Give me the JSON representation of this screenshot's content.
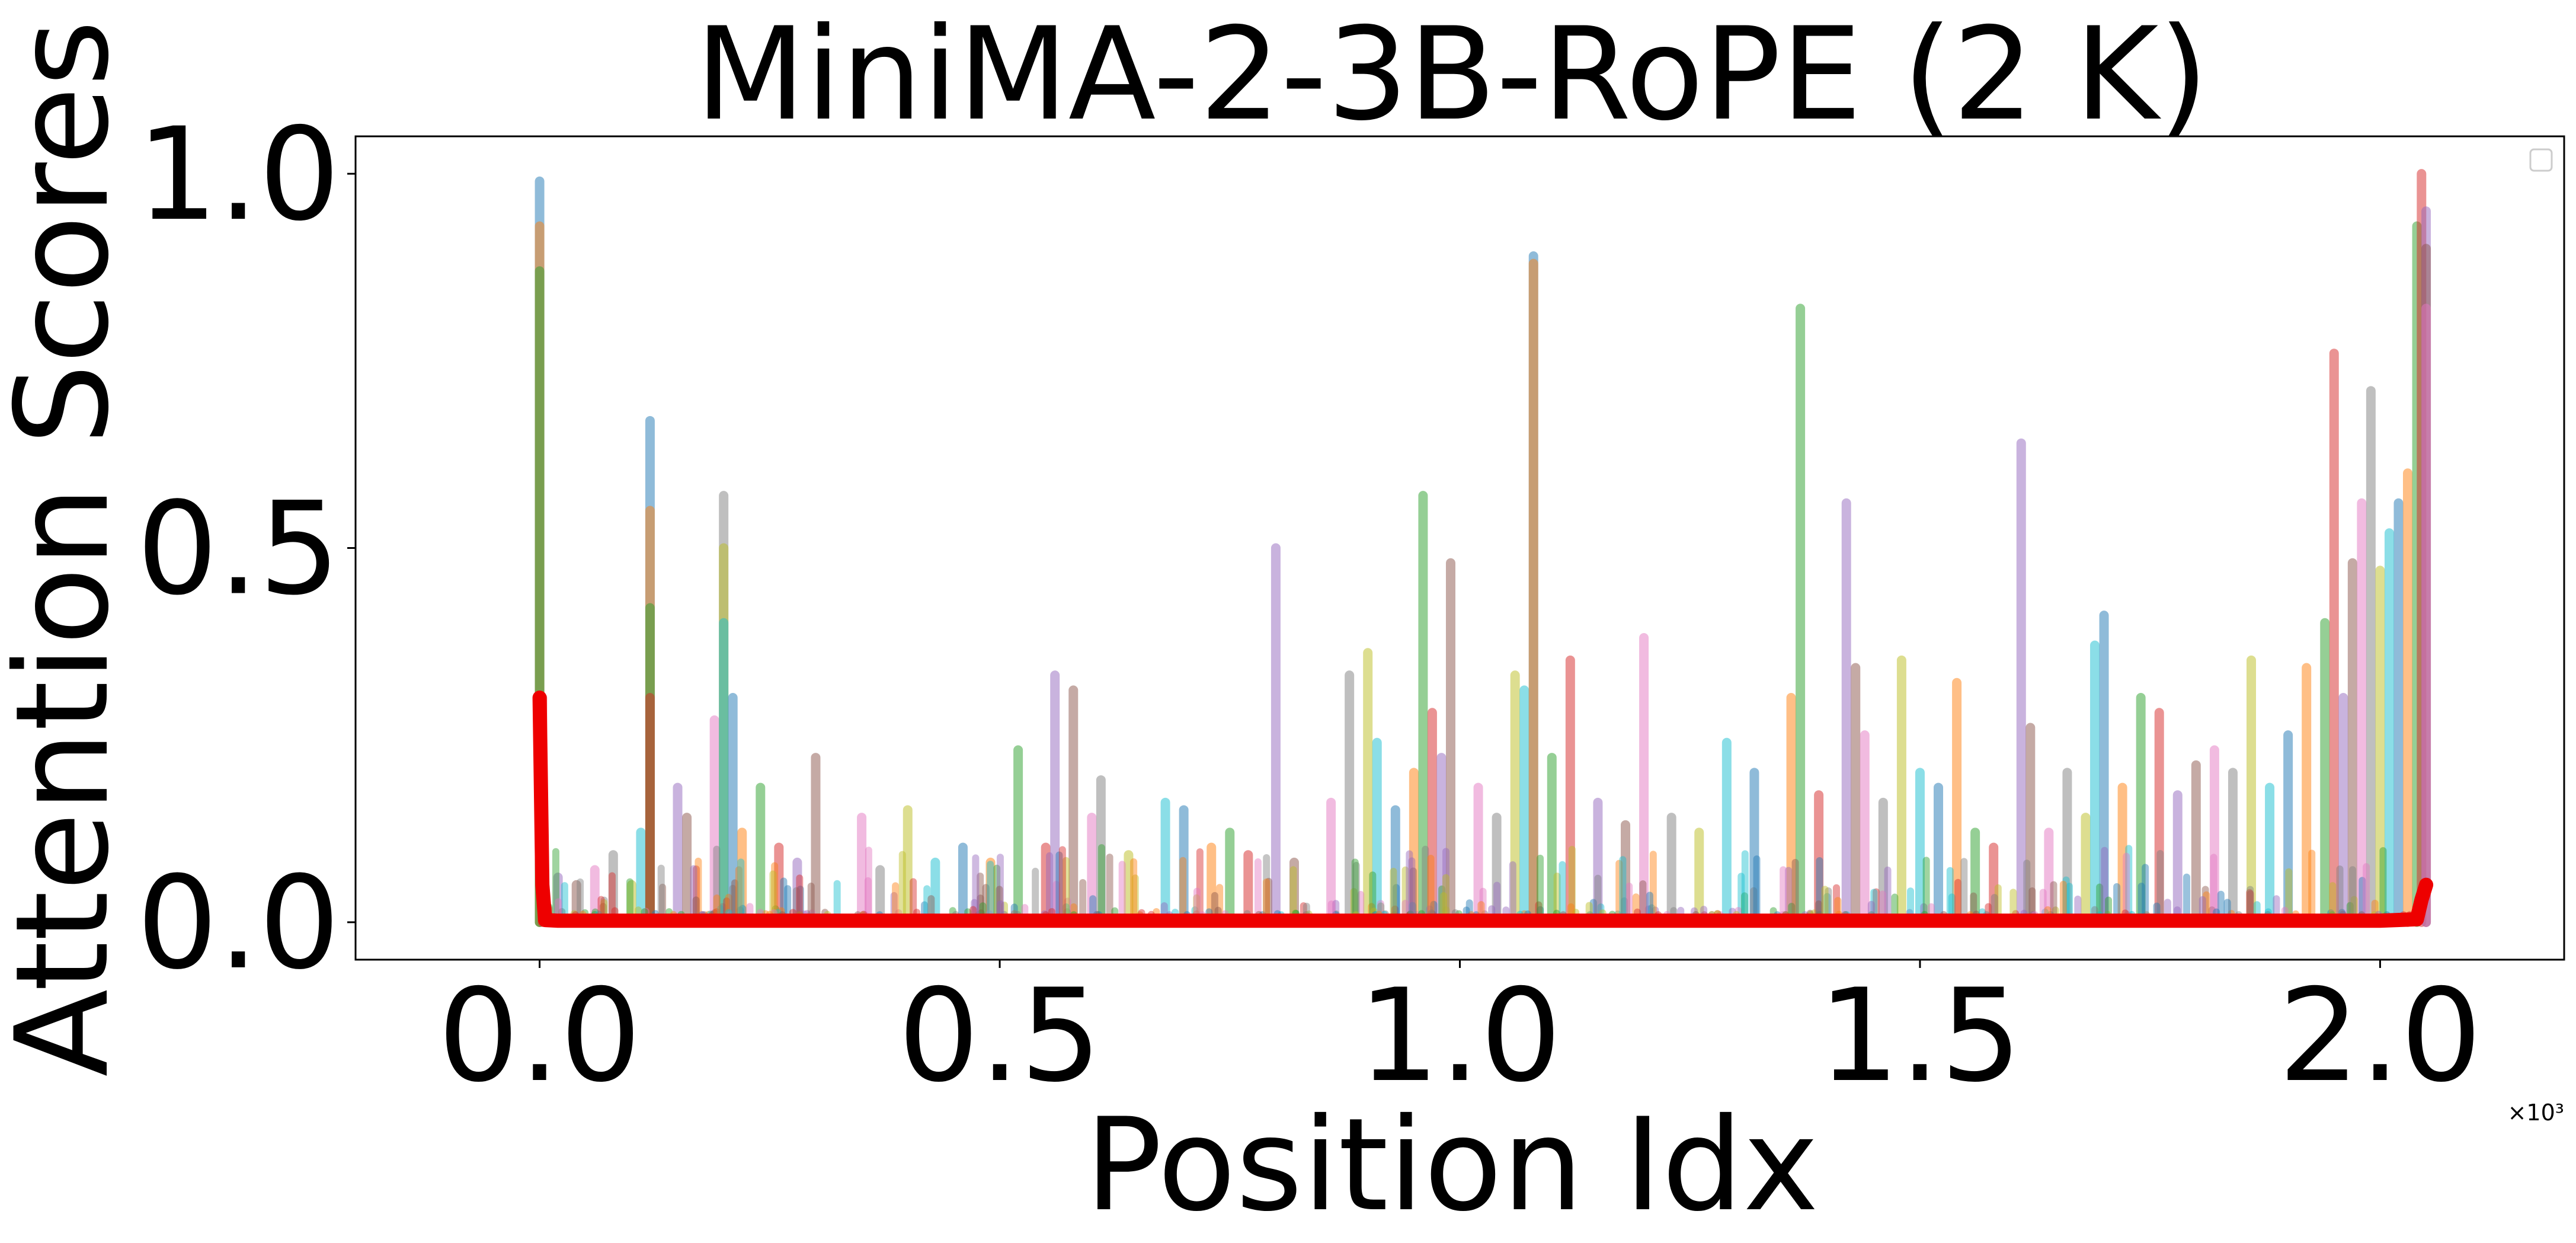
{
  "chart_data": {
    "type": "line",
    "title": "MiniMA-2-3B-RoPE (2 K)",
    "xlabel": "Position Idx",
    "ylabel": "Attention Scores",
    "x_offset_label": "×10³",
    "xlim": [
      -0.2,
      2.2
    ],
    "ylim": [
      -0.05,
      1.05
    ],
    "x_ticks": [
      0.0,
      0.5,
      1.0,
      1.5,
      2.0
    ],
    "x_tick_labels": [
      "0.0",
      "0.5",
      "1.0",
      "1.5",
      "2.0"
    ],
    "y_ticks": [
      0.0,
      0.5,
      1.0
    ],
    "y_tick_labels": [
      "0.0",
      "0.5",
      "1.0"
    ],
    "grid": false,
    "legend": "top-right (empty box)",
    "colors": {
      "highlight": "#ee0000",
      "palette": [
        "#1f77b4",
        "#ff7f0e",
        "#2ca02c",
        "#d62728",
        "#9467bd",
        "#8c564b",
        "#e377c2",
        "#7f7f7f",
        "#bcbd22",
        "#17becf"
      ]
    },
    "spikes": [
      [
        0,
        0.99
      ],
      [
        0,
        0.93
      ],
      [
        0,
        0.87
      ],
      [
        0.003,
        0.3
      ],
      [
        0.02,
        0.06
      ],
      [
        0.04,
        0.05
      ],
      [
        0.06,
        0.07
      ],
      [
        0.08,
        0.09
      ],
      [
        0.1,
        0.05
      ],
      [
        0.11,
        0.12
      ],
      [
        0.12,
        0.67
      ],
      [
        0.12,
        0.55
      ],
      [
        0.12,
        0.42
      ],
      [
        0.12,
        0.3
      ],
      [
        0.15,
        0.18
      ],
      [
        0.16,
        0.14
      ],
      [
        0.19,
        0.27
      ],
      [
        0.2,
        0.57
      ],
      [
        0.2,
        0.5
      ],
      [
        0.2,
        0.4
      ],
      [
        0.21,
        0.3
      ],
      [
        0.22,
        0.12
      ],
      [
        0.24,
        0.18
      ],
      [
        0.26,
        0.1
      ],
      [
        0.28,
        0.08
      ],
      [
        0.3,
        0.22
      ],
      [
        0.35,
        0.14
      ],
      [
        0.37,
        0.07
      ],
      [
        0.4,
        0.15
      ],
      [
        0.43,
        0.08
      ],
      [
        0.46,
        0.1
      ],
      [
        0.49,
        0.08
      ],
      [
        0.52,
        0.23
      ],
      [
        0.55,
        0.1
      ],
      [
        0.56,
        0.33
      ],
      [
        0.58,
        0.31
      ],
      [
        0.6,
        0.14
      ],
      [
        0.61,
        0.19
      ],
      [
        0.64,
        0.09
      ],
      [
        0.68,
        0.16
      ],
      [
        0.7,
        0.15
      ],
      [
        0.73,
        0.1
      ],
      [
        0.75,
        0.12
      ],
      [
        0.77,
        0.09
      ],
      [
        0.8,
        0.5
      ],
      [
        0.82,
        0.08
      ],
      [
        0.86,
        0.16
      ],
      [
        0.88,
        0.33
      ],
      [
        0.9,
        0.36
      ],
      [
        0.91,
        0.24
      ],
      [
        0.93,
        0.15
      ],
      [
        0.95,
        0.2
      ],
      [
        0.96,
        0.57
      ],
      [
        0.97,
        0.28
      ],
      [
        0.98,
        0.22
      ],
      [
        0.99,
        0.48
      ],
      [
        1.02,
        0.18
      ],
      [
        1.04,
        0.14
      ],
      [
        1.06,
        0.33
      ],
      [
        1.07,
        0.31
      ],
      [
        1.08,
        0.89
      ],
      [
        1.08,
        0.88
      ],
      [
        1.1,
        0.22
      ],
      [
        1.12,
        0.35
      ],
      [
        1.15,
        0.16
      ],
      [
        1.18,
        0.13
      ],
      [
        1.2,
        0.38
      ],
      [
        1.23,
        0.14
      ],
      [
        1.26,
        0.12
      ],
      [
        1.29,
        0.24
      ],
      [
        1.32,
        0.2
      ],
      [
        1.36,
        0.3
      ],
      [
        1.37,
        0.82
      ],
      [
        1.39,
        0.17
      ],
      [
        1.42,
        0.56
      ],
      [
        1.43,
        0.34
      ],
      [
        1.44,
        0.25
      ],
      [
        1.46,
        0.16
      ],
      [
        1.48,
        0.35
      ],
      [
        1.5,
        0.2
      ],
      [
        1.52,
        0.18
      ],
      [
        1.54,
        0.32
      ],
      [
        1.56,
        0.12
      ],
      [
        1.58,
        0.1
      ],
      [
        1.61,
        0.64
      ],
      [
        1.62,
        0.26
      ],
      [
        1.64,
        0.12
      ],
      [
        1.66,
        0.2
      ],
      [
        1.68,
        0.14
      ],
      [
        1.69,
        0.37
      ],
      [
        1.7,
        0.41
      ],
      [
        1.72,
        0.18
      ],
      [
        1.74,
        0.3
      ],
      [
        1.76,
        0.28
      ],
      [
        1.78,
        0.17
      ],
      [
        1.8,
        0.21
      ],
      [
        1.82,
        0.23
      ],
      [
        1.84,
        0.2
      ],
      [
        1.86,
        0.35
      ],
      [
        1.88,
        0.18
      ],
      [
        1.9,
        0.25
      ],
      [
        1.92,
        0.34
      ],
      [
        1.94,
        0.4
      ],
      [
        1.95,
        0.76
      ],
      [
        1.96,
        0.3
      ],
      [
        1.97,
        0.48
      ],
      [
        1.98,
        0.56
      ],
      [
        1.99,
        0.71
      ],
      [
        2.0,
        0.47
      ],
      [
        2.01,
        0.52
      ],
      [
        2.02,
        0.56
      ],
      [
        2.03,
        0.6
      ],
      [
        2.04,
        0.93
      ],
      [
        2.045,
        1.0
      ],
      [
        2.05,
        0.95
      ],
      [
        2.05,
        0.9
      ],
      [
        2.05,
        0.82
      ]
    ],
    "highlight_series": {
      "name": "",
      "color": "#ee0000",
      "x": [
        0.0,
        0.003,
        0.006,
        0.02,
        0.5,
        1.0,
        1.5,
        2.0,
        2.04,
        2.045,
        2.05
      ],
      "y": [
        0.3,
        0.05,
        0.003,
        0.002,
        0.002,
        0.002,
        0.002,
        0.002,
        0.004,
        0.03,
        0.05
      ]
    }
  }
}
